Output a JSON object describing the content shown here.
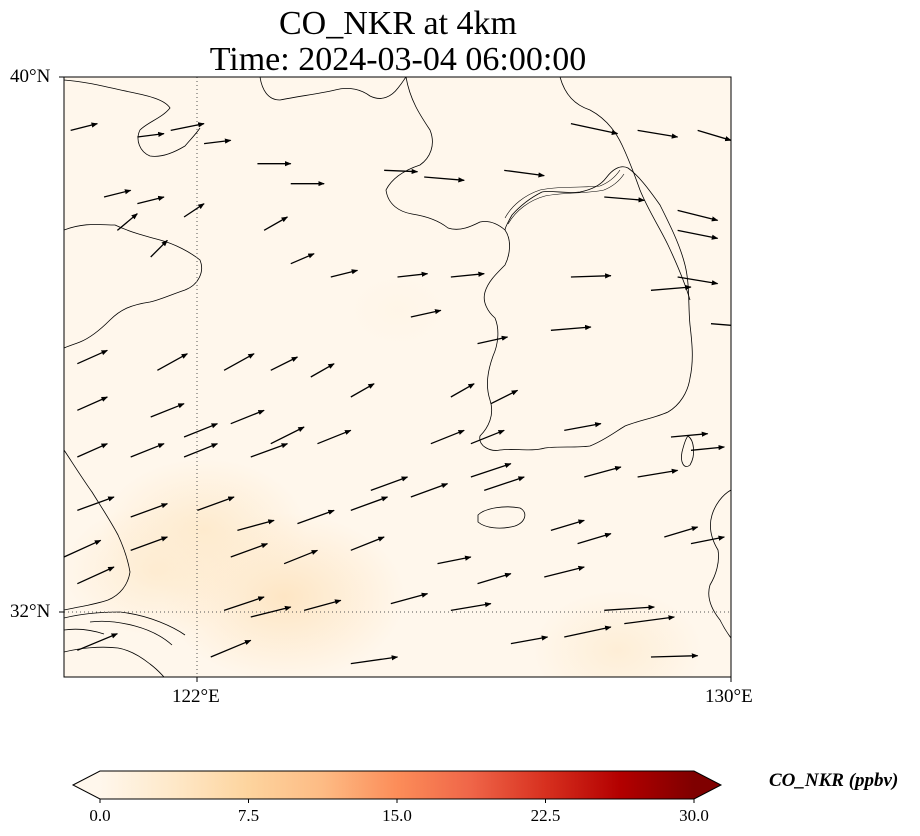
{
  "title": {
    "line1": "CO_NKR at 4km",
    "line2": "Time: 2024-03-04 06:00:00"
  },
  "axes": {
    "lat_labels": [
      "40°N",
      "32°N"
    ],
    "lon_labels": [
      "122°E",
      "130°E"
    ],
    "lat_range": [
      31,
      40
    ],
    "lon_range": [
      120,
      130
    ],
    "gridlines": "dotted at 32°N and 122°E"
  },
  "colorbar": {
    "label": "CO_NKR (ppbv)",
    "ticks": [
      "0.0",
      "7.5",
      "15.0",
      "22.5",
      "30.0"
    ],
    "range": [
      0,
      30
    ],
    "colormap": "OrRd",
    "extend": "both",
    "colors": [
      "#fff7ec",
      "#fee8c8",
      "#fdd49e",
      "#fdbb84",
      "#fc8d59",
      "#ef6548",
      "#d7301f",
      "#b30000",
      "#7f0000"
    ]
  },
  "chart_data": {
    "type": "heatmap",
    "title": "CO_NKR at 4km",
    "subtitle": "Time: 2024-03-04 06:00:00",
    "variable": "CO_NKR",
    "units": "ppbv",
    "vmin": 0,
    "vmax": 30,
    "field_description_values": [
      {
        "lon": 123.3,
        "lat": 32.2,
        "value": 4.5
      },
      {
        "lon": 122.1,
        "lat": 33.2,
        "value": 3.5
      },
      {
        "lon": 121.4,
        "lat": 32.6,
        "value": 3.0
      },
      {
        "lon": 128.3,
        "lat": 31.4,
        "value": 2.5
      },
      {
        "lon": 125.0,
        "lat": 36.5,
        "value": 0.5
      }
    ],
    "wind_vectors": [
      [
        120.1,
        39.2,
        0.4,
        0.1
      ],
      [
        120.6,
        38.2,
        0.4,
        0.1
      ],
      [
        121.1,
        39.1,
        0.4,
        0.05
      ],
      [
        121.6,
        39.2,
        0.5,
        0.1
      ],
      [
        121.1,
        38.1,
        0.4,
        0.1
      ],
      [
        122.1,
        39.0,
        0.4,
        0.05
      ],
      [
        122.9,
        38.7,
        0.5,
        0.0
      ],
      [
        123.4,
        38.4,
        0.5,
        0.0
      ],
      [
        124.8,
        38.6,
        0.5,
        -0.02
      ],
      [
        125.4,
        38.5,
        0.6,
        -0.05
      ],
      [
        126.6,
        38.6,
        0.6,
        -0.08
      ],
      [
        127.6,
        39.3,
        0.7,
        -0.15
      ],
      [
        128.6,
        39.2,
        0.6,
        -0.1
      ],
      [
        129.5,
        39.2,
        0.5,
        -0.15
      ],
      [
        128.1,
        38.2,
        0.6,
        -0.05
      ],
      [
        129.2,
        38.0,
        0.6,
        -0.15
      ],
      [
        129.2,
        37.7,
        0.6,
        -0.12
      ],
      [
        129.2,
        37.0,
        0.6,
        -0.1
      ],
      [
        129.7,
        36.3,
        0.6,
        -0.05
      ],
      [
        120.8,
        37.7,
        0.3,
        0.25
      ],
      [
        121.3,
        37.3,
        0.25,
        0.25
      ],
      [
        121.8,
        37.9,
        0.3,
        0.2
      ],
      [
        123.0,
        37.7,
        0.35,
        0.2
      ],
      [
        123.4,
        37.2,
        0.35,
        0.15
      ],
      [
        124.0,
        37.0,
        0.4,
        0.1
      ],
      [
        125.0,
        37.0,
        0.45,
        0.05
      ],
      [
        125.8,
        37.0,
        0.5,
        0.05
      ],
      [
        127.6,
        37.0,
        0.6,
        0.02
      ],
      [
        128.8,
        36.8,
        0.6,
        0.05
      ],
      [
        125.2,
        36.4,
        0.45,
        0.1
      ],
      [
        126.2,
        36.0,
        0.45,
        0.1
      ],
      [
        127.3,
        36.2,
        0.6,
        0.05
      ],
      [
        120.2,
        35.7,
        0.45,
        0.2
      ],
      [
        121.4,
        35.6,
        0.45,
        0.25
      ],
      [
        122.4,
        35.6,
        0.45,
        0.25
      ],
      [
        123.1,
        35.6,
        0.4,
        0.2
      ],
      [
        123.7,
        35.5,
        0.35,
        0.2
      ],
      [
        124.3,
        35.2,
        0.35,
        0.2
      ],
      [
        125.8,
        35.2,
        0.35,
        0.2
      ],
      [
        126.4,
        35.1,
        0.4,
        0.2
      ],
      [
        120.2,
        35.0,
        0.45,
        0.2
      ],
      [
        121.3,
        34.9,
        0.5,
        0.2
      ],
      [
        121.8,
        34.6,
        0.5,
        0.2
      ],
      [
        122.5,
        34.8,
        0.5,
        0.2
      ],
      [
        123.1,
        34.5,
        0.5,
        0.25
      ],
      [
        123.8,
        34.5,
        0.5,
        0.2
      ],
      [
        125.5,
        34.5,
        0.5,
        0.2
      ],
      [
        126.1,
        34.5,
        0.5,
        0.2
      ],
      [
        127.5,
        34.7,
        0.55,
        0.1
      ],
      [
        129.1,
        34.6,
        0.55,
        0.05
      ],
      [
        129.4,
        34.4,
        0.5,
        0.05
      ],
      [
        120.2,
        34.3,
        0.45,
        0.2
      ],
      [
        121.0,
        34.3,
        0.5,
        0.2
      ],
      [
        121.8,
        34.3,
        0.5,
        0.2
      ],
      [
        122.8,
        34.3,
        0.55,
        0.2
      ],
      [
        124.6,
        33.8,
        0.55,
        0.2
      ],
      [
        125.2,
        33.7,
        0.55,
        0.2
      ],
      [
        126.1,
        34.0,
        0.6,
        0.2
      ],
      [
        126.3,
        33.8,
        0.6,
        0.2
      ],
      [
        127.8,
        34.0,
        0.55,
        0.15
      ],
      [
        128.6,
        34.0,
        0.6,
        0.1
      ],
      [
        120.2,
        33.5,
        0.55,
        0.2
      ],
      [
        121.0,
        33.4,
        0.55,
        0.2
      ],
      [
        122.0,
        33.5,
        0.55,
        0.2
      ],
      [
        122.6,
        33.2,
        0.55,
        0.15
      ],
      [
        123.5,
        33.3,
        0.55,
        0.2
      ],
      [
        124.3,
        33.5,
        0.55,
        0.2
      ],
      [
        127.3,
        33.2,
        0.5,
        0.15
      ],
      [
        127.7,
        33.0,
        0.5,
        0.15
      ],
      [
        129.0,
        33.1,
        0.5,
        0.15
      ],
      [
        129.4,
        33.0,
        0.5,
        0.1
      ],
      [
        120.0,
        32.8,
        0.55,
        0.25
      ],
      [
        121.0,
        32.9,
        0.55,
        0.2
      ],
      [
        122.5,
        32.8,
        0.55,
        0.2
      ],
      [
        123.3,
        32.7,
        0.5,
        0.2
      ],
      [
        124.3,
        32.9,
        0.5,
        0.2
      ],
      [
        125.6,
        32.7,
        0.5,
        0.1
      ],
      [
        126.2,
        32.4,
        0.5,
        0.15
      ],
      [
        127.2,
        32.5,
        0.6,
        0.15
      ],
      [
        120.2,
        32.4,
        0.55,
        0.25
      ],
      [
        122.4,
        32.0,
        0.6,
        0.2
      ],
      [
        122.8,
        31.9,
        0.6,
        0.15
      ],
      [
        123.6,
        32.0,
        0.55,
        0.15
      ],
      [
        124.9,
        32.1,
        0.55,
        0.15
      ],
      [
        125.8,
        32.0,
        0.6,
        0.1
      ],
      [
        128.1,
        32.0,
        0.75,
        0.05
      ],
      [
        128.4,
        31.8,
        0.75,
        0.1
      ],
      [
        127.5,
        31.6,
        0.7,
        0.15
      ],
      [
        126.7,
        31.5,
        0.55,
        0.1
      ],
      [
        120.2,
        31.4,
        0.6,
        0.25
      ],
      [
        122.2,
        31.3,
        0.6,
        0.25
      ],
      [
        124.3,
        31.2,
        0.7,
        0.1
      ],
      [
        128.8,
        31.3,
        0.7,
        0.02
      ]
    ],
    "wind_vector_format": "[lon, lat, u_deg, v_deg]"
  }
}
